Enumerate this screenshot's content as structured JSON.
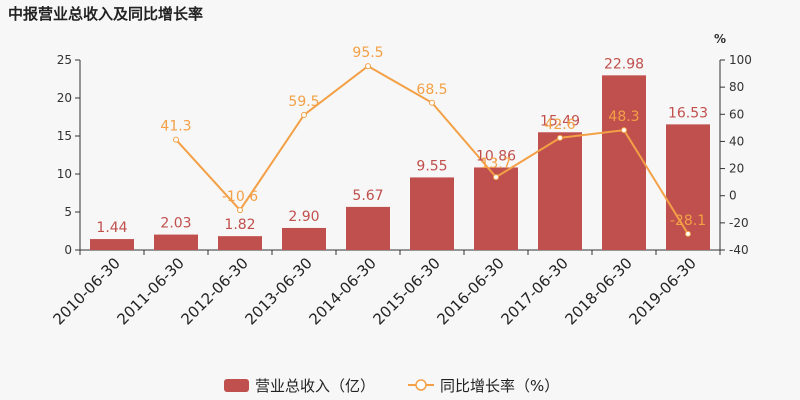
{
  "colors": {
    "bar": "#c0504d",
    "line": "#f3a046",
    "axis": "#333333",
    "background": "#f7f7f7"
  },
  "chart_data": {
    "type": "bar",
    "title": "中报营业总收入及同比增长率",
    "categories": [
      "2010-06-30",
      "2011-06-30",
      "2012-06-30",
      "2013-06-30",
      "2014-06-30",
      "2015-06-30",
      "2016-06-30",
      "2017-06-30",
      "2018-06-30",
      "2019-06-30"
    ],
    "series": [
      {
        "name": "营业总收入（亿）",
        "type": "bar",
        "axis": "left",
        "values": [
          1.44,
          2.03,
          1.82,
          2.9,
          5.67,
          9.55,
          10.86,
          15.49,
          22.98,
          16.53
        ],
        "labels": [
          "1.44",
          "2.03",
          "1.82",
          "2.90",
          "5.67",
          "9.55",
          "10.86",
          "15.49",
          "22.98",
          "16.53"
        ]
      },
      {
        "name": "同比增长率（%）",
        "type": "line",
        "axis": "right",
        "values": [
          null,
          41.3,
          -10.6,
          59.5,
          95.5,
          68.5,
          13.7,
          42.6,
          48.3,
          -28.1
        ],
        "labels": [
          "",
          "41.3",
          "-10.6",
          "59.5",
          "95.5",
          "68.5",
          "13.7",
          "42.6",
          "48.3",
          "-28.1"
        ]
      }
    ],
    "ylim_left": [
      0,
      25
    ],
    "yticks_left": [
      0,
      5,
      10,
      15,
      20,
      25
    ],
    "ylim_right": [
      -40,
      100
    ],
    "yticks_right": [
      -40,
      -20,
      0,
      20,
      40,
      60,
      80,
      100
    ],
    "ylabel_right": "%",
    "legend_position": "bottom-center",
    "grid": false
  }
}
